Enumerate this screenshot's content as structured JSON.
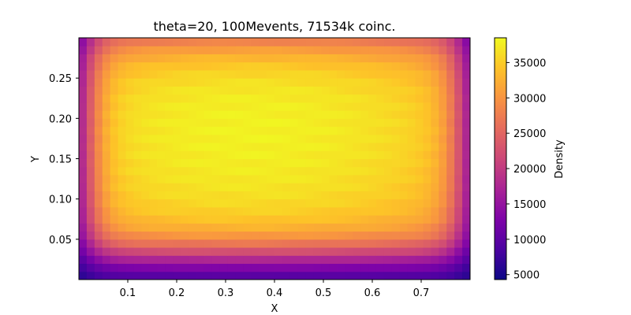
{
  "chart_data": {
    "type": "heatmap",
    "title": "theta=20, 100Mevents, 71534k coinc.",
    "xlabel": "X",
    "ylabel": "Y",
    "xlim": [
      0.0,
      0.8
    ],
    "ylim": [
      0.0,
      0.3
    ],
    "xticks": [
      0.1,
      0.2,
      0.3,
      0.4,
      0.5,
      0.6,
      0.7
    ],
    "xtick_labels": [
      "0.1",
      "0.2",
      "0.3",
      "0.4",
      "0.5",
      "0.6",
      "0.7"
    ],
    "yticks": [
      0.05,
      0.1,
      0.15,
      0.2,
      0.25
    ],
    "ytick_labels": [
      "0.05",
      "0.10",
      "0.15",
      "0.20",
      "0.25"
    ],
    "grid": {
      "nx": 50,
      "ny": 30
    },
    "colormap": "plasma",
    "colorbar": {
      "label": "Density",
      "vmin": 4300,
      "vmax": 38500,
      "ticks": [
        5000,
        10000,
        15000,
        20000,
        25000,
        30000,
        35000
      ],
      "tick_labels": [
        "5000",
        "10000",
        "15000",
        "20000",
        "25000",
        "30000",
        "35000"
      ]
    },
    "density_model": {
      "peak": 38000,
      "min": 4300,
      "peak_x": 0.35,
      "peak_y": 0.2,
      "description": "broad plateau peaking near x~0.2-0.5, y~0.2; falls off toward all edges, sharpest toward y=0"
    }
  }
}
